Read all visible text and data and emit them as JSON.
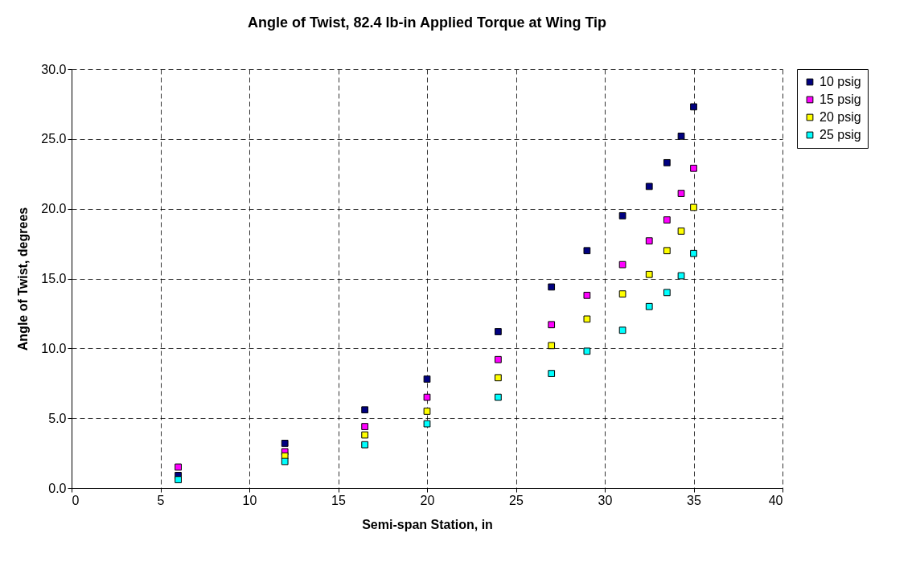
{
  "chart_data": {
    "type": "scatter",
    "title": "Angle of Twist, 82.4 lb-in Applied Torque at Wing Tip",
    "xlabel": "Semi-span Station, in",
    "ylabel": "Angle of Twist, degrees",
    "x": [
      6,
      12,
      16.5,
      20,
      24,
      27,
      29,
      31,
      32.5,
      33.5,
      34.3,
      35
    ],
    "series": [
      {
        "name": "10 psig",
        "color": "#000080",
        "values": [
          0.9,
          3.2,
          5.6,
          7.8,
          11.2,
          14.4,
          17.0,
          19.5,
          21.6,
          23.3,
          25.2,
          27.3
        ]
      },
      {
        "name": "15 psig",
        "color": "#ff00ff",
        "values": [
          1.5,
          2.6,
          4.4,
          6.5,
          9.2,
          11.7,
          13.8,
          16.0,
          17.7,
          19.2,
          21.1,
          22.9
        ]
      },
      {
        "name": "20 psig",
        "color": "#ffff00",
        "values": [
          null,
          2.3,
          3.8,
          5.5,
          7.9,
          10.2,
          12.1,
          13.9,
          15.3,
          17.0,
          18.4,
          20.1
        ]
      },
      {
        "name": "25 psig",
        "color": "#00ffff",
        "values": [
          0.6,
          1.9,
          3.1,
          4.6,
          6.5,
          8.2,
          9.8,
          11.3,
          13.0,
          14.0,
          15.2,
          16.8
        ]
      }
    ],
    "xlim": [
      0,
      40
    ],
    "xticks": [
      0,
      5,
      10,
      15,
      20,
      25,
      30,
      35,
      40
    ],
    "ylim": [
      0,
      30
    ],
    "yticks": [
      {
        "value": 0,
        "label": "0.0"
      },
      {
        "value": 5,
        "label": "5.0"
      },
      {
        "value": 10,
        "label": "10.0"
      },
      {
        "value": 15,
        "label": "15.0"
      },
      {
        "value": 20,
        "label": "20.0"
      },
      {
        "value": 25,
        "label": "25.0"
      },
      {
        "value": 30,
        "label": "30.0"
      }
    ],
    "grid": true,
    "legend": "right",
    "marker": "square"
  }
}
